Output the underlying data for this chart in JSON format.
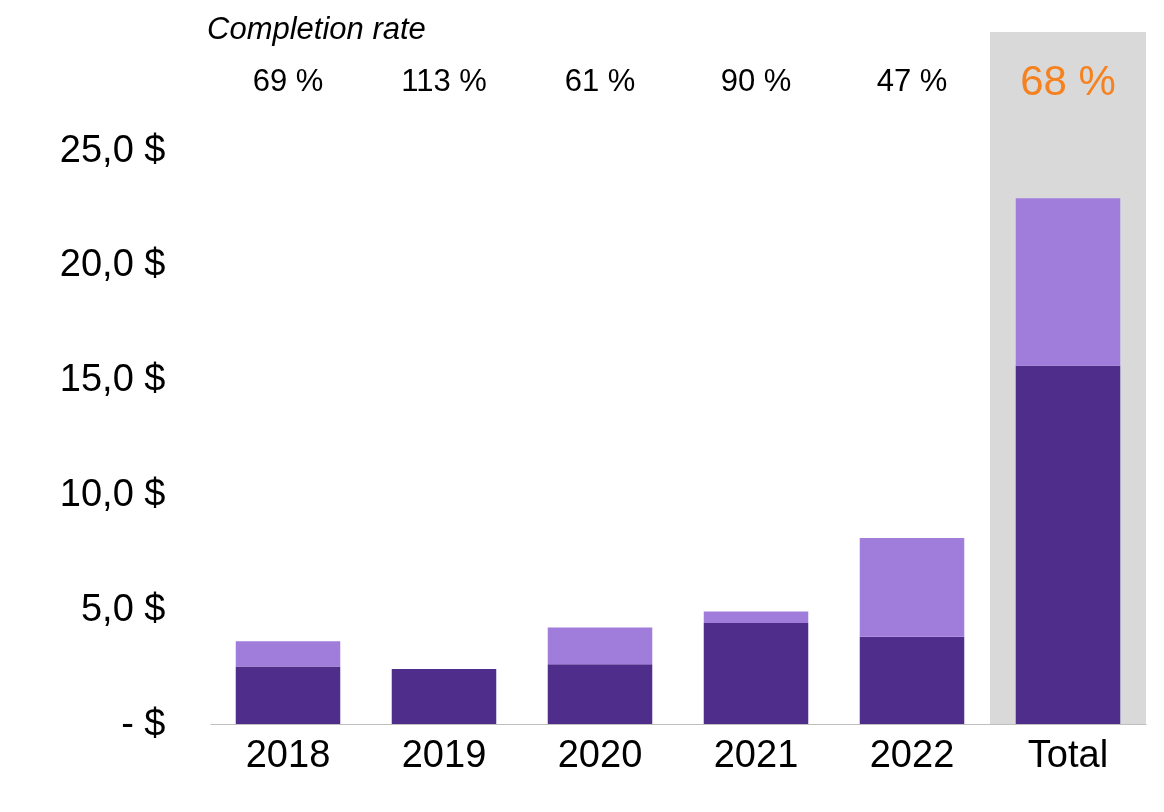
{
  "chart_data": {
    "type": "bar",
    "title": "Completion rate",
    "stacked": true,
    "categories": [
      "2018",
      "2019",
      "2020",
      "2021",
      "2022",
      "Total"
    ],
    "series": [
      {
        "color": "#4f2d8a",
        "values": [
          2.5,
          2.4,
          2.6,
          4.4,
          3.8,
          15.6
        ]
      },
      {
        "color": "#a07ddb",
        "values": [
          1.1,
          null,
          1.6,
          0.5,
          4.3,
          7.3
        ]
      }
    ],
    "ylim": [
      0,
      25
    ],
    "yticks": [
      {
        "value": 0,
        "label": "-   $"
      },
      {
        "value": 5,
        "label": "5,0  $"
      },
      {
        "value": 10,
        "label": "10,0  $"
      },
      {
        "value": 15,
        "label": "15,0  $"
      },
      {
        "value": 20,
        "label": "20,0  $"
      },
      {
        "value": 25,
        "label": "25,0  $"
      }
    ],
    "bands": [
      {
        "axis": "x",
        "from": "Total",
        "to": "Total",
        "color": "#d9d9d9"
      }
    ],
    "annotations": [
      "69 %",
      "113 %",
      "61 %",
      "90 %",
      "47  %",
      "68 %"
    ],
    "grid": false,
    "legend": false
  }
}
